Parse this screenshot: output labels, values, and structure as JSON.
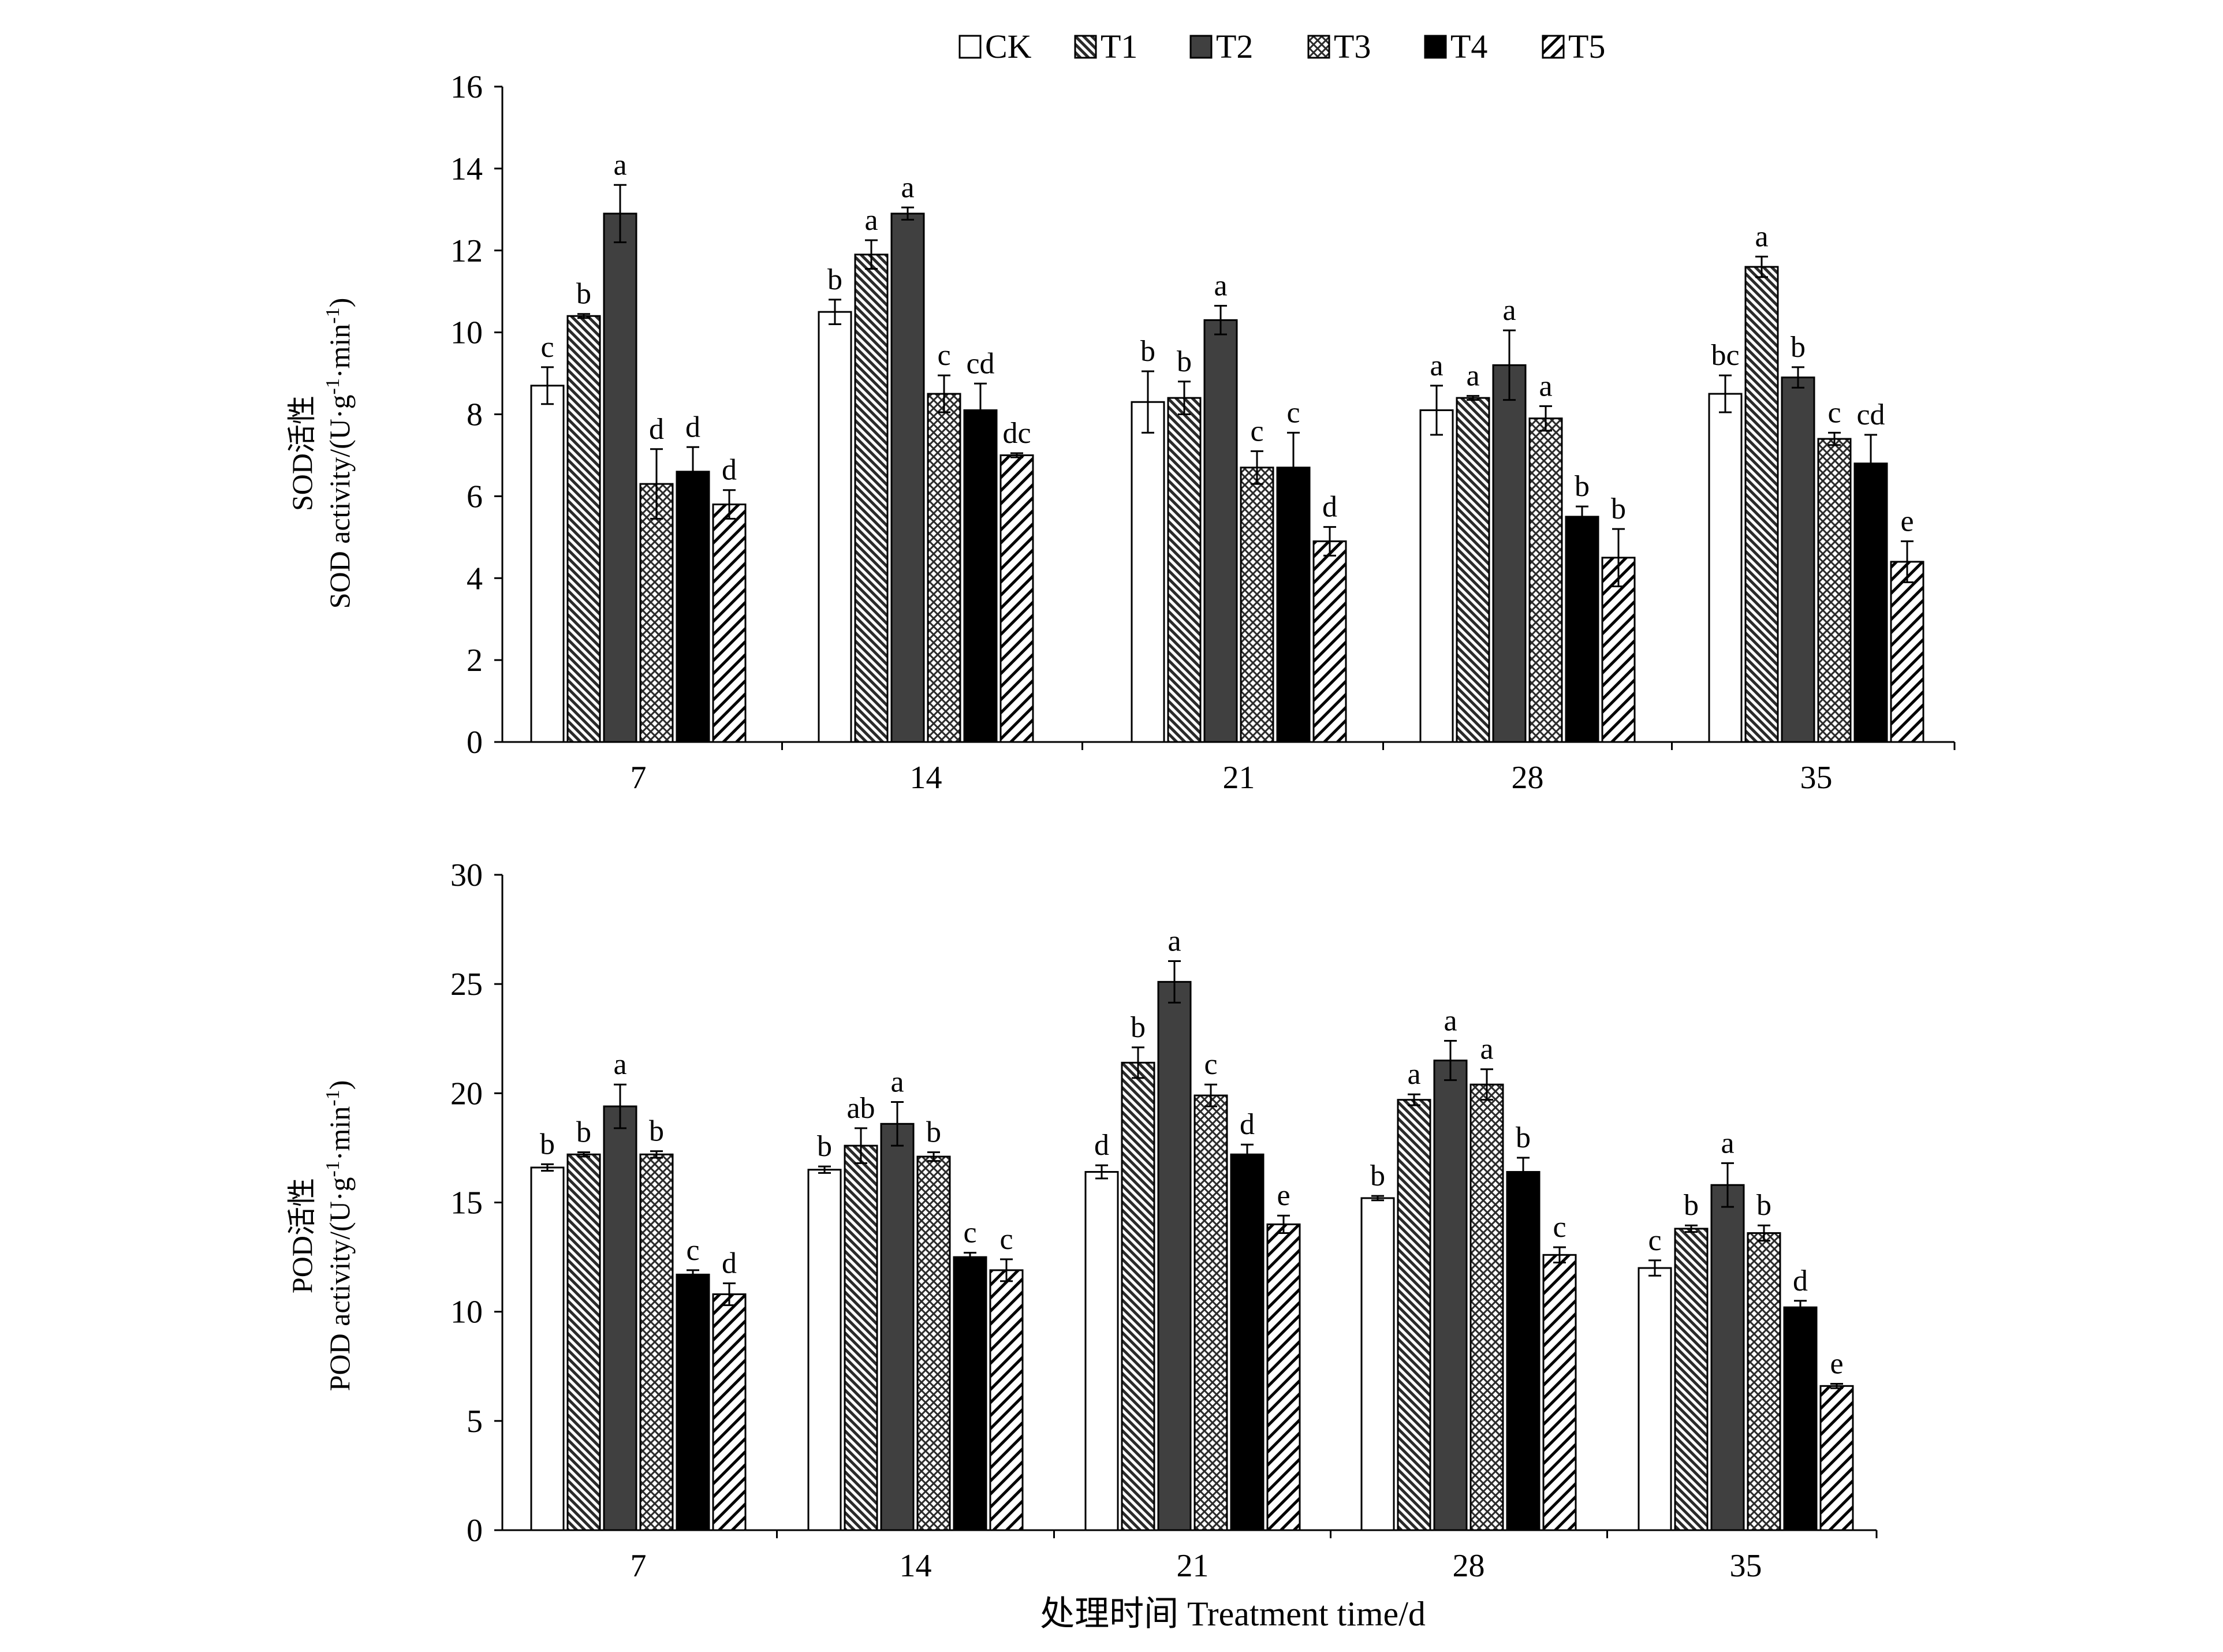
{
  "legend": [
    "CK",
    "T1",
    "T2",
    "T3",
    "T4",
    "T5"
  ],
  "xlabel": "处理时间 Treatment  time/d",
  "chart_data": [
    {
      "type": "bar",
      "id": "sod",
      "ylabel_cn": "SOD活性",
      "ylabel_en": "SOD activity/(U·g",
      "ylabel_sup1": "-1",
      "ylabel_mid": "·min",
      "ylabel_sup2": "-1",
      "ylabel_end": ")",
      "categories": [
        "7",
        "14",
        "21",
        "28",
        "35"
      ],
      "ylim": [
        0,
        16
      ],
      "yticks": [
        0,
        2,
        4,
        6,
        8,
        10,
        12,
        14,
        16
      ],
      "series": [
        {
          "name": "CK",
          "values": [
            8.7,
            10.5,
            8.3,
            8.1,
            8.5
          ],
          "errors": [
            0.45,
            0.3,
            0.75,
            0.6,
            0.45
          ],
          "letters": [
            "c",
            "b",
            "b",
            "a",
            "bc"
          ]
        },
        {
          "name": "T1",
          "values": [
            10.4,
            11.9,
            8.4,
            8.4,
            11.6
          ],
          "errors": [
            0.05,
            0.35,
            0.4,
            0.05,
            0.25
          ],
          "letters": [
            "b",
            "a",
            "b",
            "a",
            "a"
          ]
        },
        {
          "name": "T2",
          "values": [
            12.9,
            12.9,
            10.3,
            9.2,
            8.9
          ],
          "errors": [
            0.7,
            0.15,
            0.35,
            0.85,
            0.25
          ],
          "letters": [
            "a",
            "a",
            "a",
            "a",
            "b"
          ]
        },
        {
          "name": "T3",
          "values": [
            6.3,
            8.5,
            6.7,
            7.9,
            7.4
          ],
          "errors": [
            0.85,
            0.45,
            0.4,
            0.3,
            0.15
          ],
          "letters": [
            "d",
            "c",
            "c",
            "a",
            "c"
          ]
        },
        {
          "name": "T4",
          "values": [
            6.6,
            8.1,
            6.7,
            5.5,
            6.8
          ],
          "errors": [
            0.6,
            0.65,
            0.85,
            0.25,
            0.7
          ],
          "letters": [
            "d",
            "cd",
            "c",
            "b",
            "cd"
          ]
        },
        {
          "name": "T5",
          "values": [
            5.8,
            7.0,
            4.9,
            4.5,
            4.4
          ],
          "errors": [
            0.35,
            0.05,
            0.35,
            0.7,
            0.5
          ],
          "letters": [
            "d",
            "dc",
            "d",
            "b",
            "e"
          ]
        }
      ]
    },
    {
      "type": "bar",
      "id": "pod",
      "ylabel_cn": "POD活性",
      "ylabel_en": "POD activity/(U·g",
      "ylabel_sup1": "-1",
      "ylabel_mid": "·min",
      "ylabel_sup2": "-1",
      "ylabel_end": ")",
      "categories": [
        "7",
        "14",
        "21",
        "28",
        "35"
      ],
      "ylim": [
        0,
        30
      ],
      "yticks": [
        0,
        5,
        10,
        15,
        20,
        25,
        30
      ],
      "series": [
        {
          "name": "CK",
          "values": [
            16.6,
            16.5,
            16.4,
            15.2,
            12.0
          ],
          "errors": [
            0.15,
            0.15,
            0.3,
            0.1,
            0.35
          ],
          "letters": [
            "b",
            "b",
            "d",
            "b",
            "c"
          ]
        },
        {
          "name": "T1",
          "values": [
            17.2,
            17.6,
            21.4,
            19.7,
            13.8
          ],
          "errors": [
            0.1,
            0.8,
            0.7,
            0.25,
            0.15
          ],
          "letters": [
            "b",
            "ab",
            "b",
            "a",
            "b"
          ]
        },
        {
          "name": "T2",
          "values": [
            19.4,
            18.6,
            25.1,
            21.5,
            15.8
          ],
          "errors": [
            1.0,
            1.0,
            0.95,
            0.9,
            1.0
          ],
          "letters": [
            "a",
            "a",
            "a",
            "a",
            "a"
          ]
        },
        {
          "name": "T3",
          "values": [
            17.2,
            17.1,
            19.9,
            20.4,
            13.6
          ],
          "errors": [
            0.15,
            0.2,
            0.5,
            0.7,
            0.35
          ],
          "letters": [
            "b",
            "b",
            "c",
            "a",
            "b"
          ]
        },
        {
          "name": "T4",
          "values": [
            11.7,
            12.5,
            17.2,
            16.4,
            10.2
          ],
          "errors": [
            0.2,
            0.2,
            0.45,
            0.65,
            0.3
          ],
          "letters": [
            "c",
            "c",
            "d",
            "b",
            "d"
          ]
        },
        {
          "name": "T5",
          "values": [
            10.8,
            11.9,
            14.0,
            12.6,
            6.6
          ],
          "errors": [
            0.5,
            0.5,
            0.4,
            0.35,
            0.1
          ],
          "letters": [
            "d",
            "c",
            "e",
            "c",
            "e"
          ]
        }
      ]
    }
  ]
}
